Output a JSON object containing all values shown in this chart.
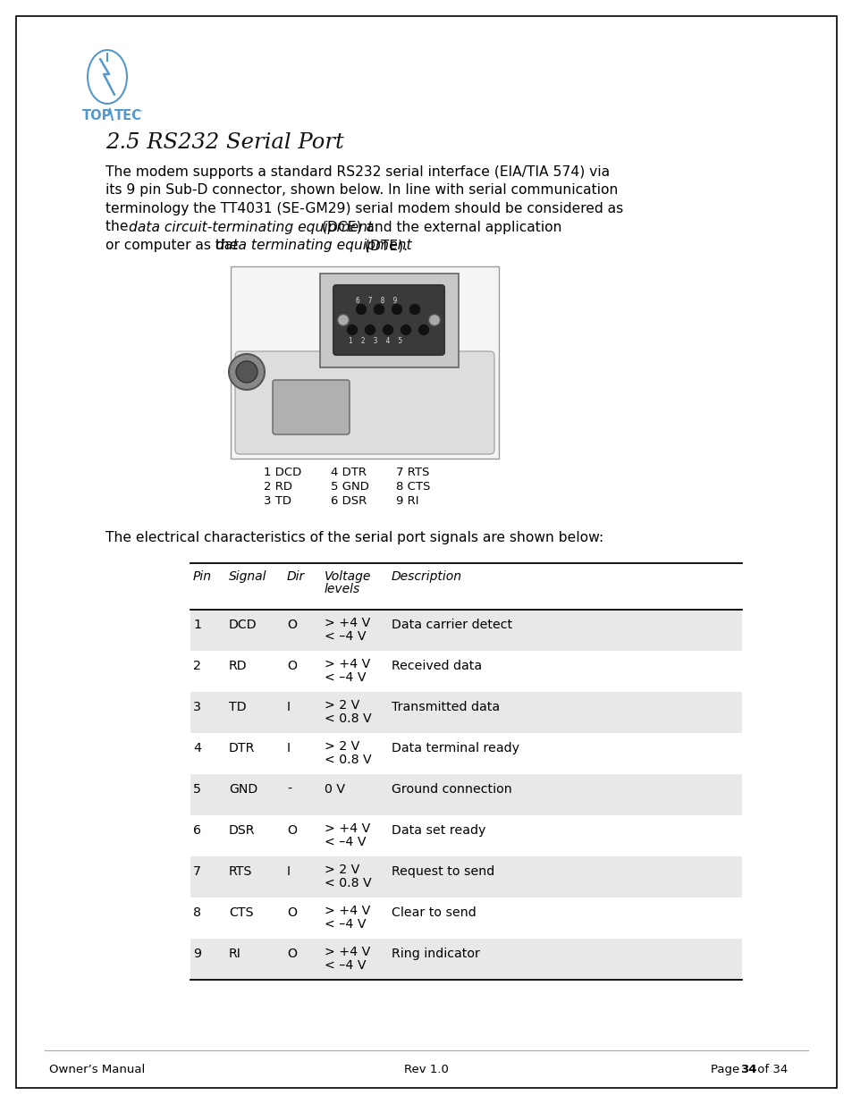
{
  "page_title": "2.5 RS232 Serial Port",
  "table_intro": "The electrical characteristics of the serial port signals are shown below:",
  "table_headers": [
    "Pin",
    "Signal",
    "Dir",
    "Voltage\nlevels",
    "Description"
  ],
  "table_rows": [
    [
      "1",
      "DCD",
      "O",
      "> +4 V\n< –4 V",
      "Data carrier detect"
    ],
    [
      "2",
      "RD",
      "O",
      "> +4 V\n< –4 V",
      "Received data"
    ],
    [
      "3",
      "TD",
      "I",
      "> 2 V\n< 0.8 V",
      "Transmitted data"
    ],
    [
      "4",
      "DTR",
      "I",
      "> 2 V\n< 0.8 V",
      "Data terminal ready"
    ],
    [
      "5",
      "GND",
      "-",
      "0 V",
      "Ground connection"
    ],
    [
      "6",
      "DSR",
      "O",
      "> +4 V\n< –4 V",
      "Data set ready"
    ],
    [
      "7",
      "RTS",
      "I",
      "> 2 V\n< 0.8 V",
      "Request to send"
    ],
    [
      "8",
      "CTS",
      "O",
      "> +4 V\n< –4 V",
      "Clear to send"
    ],
    [
      "9",
      "RI",
      "O",
      "> +4 V\n< –4 V",
      "Ring indicator"
    ]
  ],
  "shaded_rows": [
    0,
    2,
    4,
    6,
    8
  ],
  "footer_left": "Owner’s Manual",
  "footer_center": "Rev 1.0",
  "footer_right": "Page 34 of 34",
  "page_bg": "#ffffff",
  "shade_color": "#e8e8e8",
  "logo_color": "#5599cc",
  "text_color": "#000000"
}
